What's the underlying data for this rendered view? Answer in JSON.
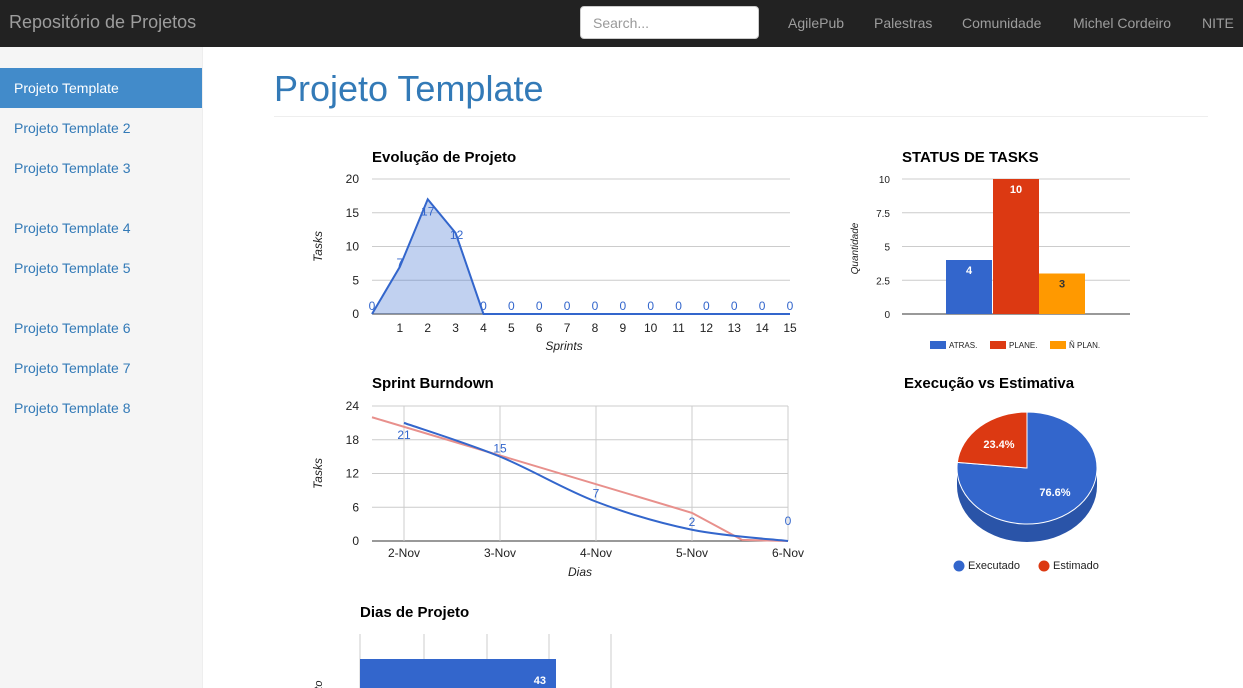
{
  "navbar": {
    "brand": "Repositório de Projetos",
    "search_placeholder": "Search...",
    "links": [
      "AgilePub",
      "Palestras",
      "Comunidade",
      "Michel Cordeiro",
      "NITE"
    ]
  },
  "sidebar": {
    "items": [
      {
        "label": "Projeto Template",
        "active": true
      },
      {
        "label": "Projeto Template 2"
      },
      {
        "label": "Projeto Template 3"
      },
      {
        "label": "Projeto Template 4"
      },
      {
        "label": "Projeto Template 5"
      },
      {
        "label": "Projeto Template 6"
      },
      {
        "label": "Projeto Template 7"
      },
      {
        "label": "Projeto Template 8"
      }
    ]
  },
  "main": {
    "title": "Projeto Template"
  },
  "colors": {
    "blue": "#3366cc",
    "red": "#dc3912",
    "orange": "#ff9900",
    "pink": "#e8908c",
    "link": "#337ab7",
    "active_bg": "#428bca"
  },
  "chart_data": [
    {
      "type": "area",
      "title": "Evolução de Projeto",
      "xlabel": "Sprints",
      "ylabel": "Tasks",
      "x": [
        0,
        1,
        2,
        3,
        4,
        5,
        6,
        7,
        8,
        9,
        10,
        11,
        12,
        13,
        14,
        15
      ],
      "x_tick_labels": [
        "1",
        "2",
        "3",
        "4",
        "5",
        "6",
        "7",
        "8",
        "9",
        "10",
        "11",
        "12",
        "13",
        "14",
        "15"
      ],
      "values": [
        0,
        7,
        17,
        12,
        0,
        0,
        0,
        0,
        0,
        0,
        0,
        0,
        0,
        0,
        0,
        0
      ],
      "y_ticks": [
        0,
        5,
        10,
        15,
        20
      ],
      "ylim": [
        0,
        20
      ]
    },
    {
      "type": "bar",
      "title": "STATUS DE TASKS",
      "ylabel": "Quantidade",
      "series": [
        {
          "name": "ATRAS.",
          "value": 4
        },
        {
          "name": "PLANE.",
          "value": 10
        },
        {
          "name": "Ñ PLAN.",
          "value": 3
        }
      ],
      "y_ticks": [
        0,
        2.5,
        5,
        7.5,
        10
      ],
      "ylim": [
        0,
        10
      ],
      "legend": "bottom"
    },
    {
      "type": "line",
      "title": "Sprint Burndown",
      "xlabel": "Dias",
      "ylabel": "Tasks",
      "categories": [
        "2-Nov",
        "3-Nov",
        "4-Nov",
        "5-Nov",
        "6-Nov"
      ],
      "series": [
        {
          "values": [
            21,
            15,
            7,
            2,
            0
          ]
        },
        {
          "values": [
            20.5,
            15.5,
            10,
            5,
            0
          ]
        }
      ],
      "y_ticks": [
        0,
        6,
        12,
        18,
        24
      ],
      "ylim": [
        0,
        24
      ]
    },
    {
      "type": "pie",
      "title": "Execução vs Estimativa",
      "slices": [
        {
          "name": "Executado",
          "value": 76.6,
          "label": "76.6%"
        },
        {
          "name": "Estimado",
          "value": 23.4,
          "label": "23.4%"
        }
      ],
      "legend": "bottom"
    },
    {
      "type": "bar",
      "title": "Dias de Projeto",
      "ylabel": "Projeto",
      "values": [
        43
      ]
    }
  ]
}
